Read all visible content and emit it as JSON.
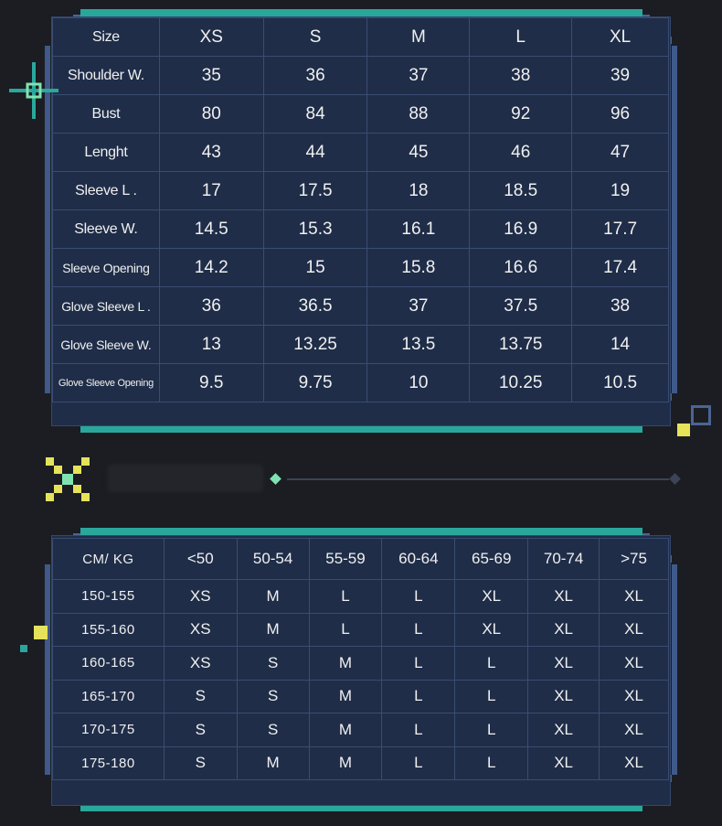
{
  "size_chart": {
    "header": [
      "Size",
      "XS",
      "S",
      "M",
      "L",
      "XL"
    ],
    "rows": [
      [
        "Shoulder W.",
        "35",
        "36",
        "37",
        "38",
        "39"
      ],
      [
        "Bust",
        "80",
        "84",
        "88",
        "92",
        "96"
      ],
      [
        "Lenght",
        "43",
        "44",
        "45",
        "46",
        "47"
      ],
      [
        "Sleeve L .",
        "17",
        "17.5",
        "18",
        "18.5",
        "19"
      ],
      [
        "Sleeve W.",
        "14.5",
        "15.3",
        "16.1",
        "16.9",
        "17.7"
      ],
      [
        "Sleeve Opening",
        "14.2",
        "15",
        "15.8",
        "16.6",
        "17.4"
      ],
      [
        "Glove Sleeve L .",
        "36",
        "36.5",
        "37",
        "37.5",
        "38"
      ],
      [
        "Glove Sleeve W.",
        "13",
        "13.25",
        "13.5",
        "13.75",
        "14"
      ],
      [
        "Glove Sleeve Opening",
        "9.5",
        "9.75",
        "10",
        "10.25",
        "10.5"
      ]
    ]
  },
  "recommendation_chart": {
    "header": [
      "CM/ KG",
      "<50",
      "50-54",
      "55-59",
      "60-64",
      "65-69",
      "70-74",
      ">75"
    ],
    "rows": [
      [
        "150-155",
        "XS",
        "M",
        "L",
        "L",
        "XL",
        "XL",
        "XL"
      ],
      [
        "155-160",
        "XS",
        "M",
        "L",
        "L",
        "XL",
        "XL",
        "XL"
      ],
      [
        "160-165",
        "XS",
        "S",
        "M",
        "L",
        "L",
        "XL",
        "XL"
      ],
      [
        "165-170",
        "S",
        "S",
        "M",
        "L",
        "L",
        "XL",
        "XL"
      ],
      [
        "170-175",
        "S",
        "S",
        "M",
        "L",
        "L",
        "XL",
        "XL"
      ],
      [
        "175-180",
        "S",
        "M",
        "M",
        "L",
        "L",
        "XL",
        "XL"
      ]
    ]
  },
  "colors": {
    "background": "#1b1d22",
    "teal": "#2aa79b",
    "panel": "#1f2d48",
    "pixel_blue": "#4b6494",
    "yellow": "#e6e35a",
    "mint": "#7fe3b1"
  },
  "icons": [
    "sparkle-icon",
    "cross-pixel-icon",
    "diamond-icon"
  ]
}
